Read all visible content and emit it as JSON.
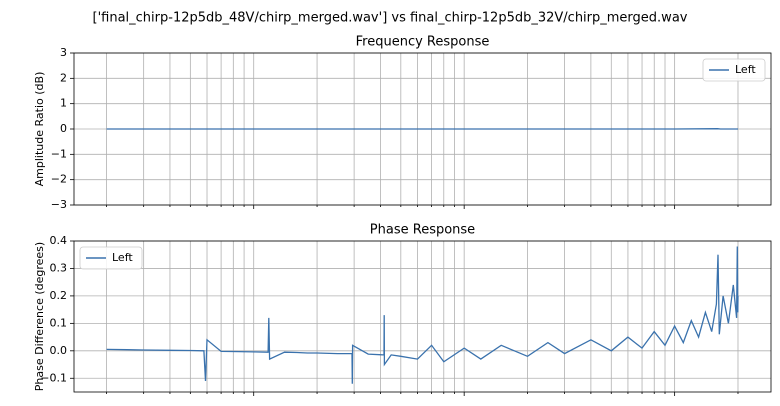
{
  "title": "['final_chirp-12p5db_48V/chirp_merged.wav'] vs final_chirp-12p5db_32V/chirp_merged.wav",
  "chart_data": [
    {
      "type": "line",
      "title": "Frequency Response",
      "y_label": "Amplitude Ratio (dB)",
      "x_scale": "log",
      "xlim": [
        14,
        28700
      ],
      "xticks": [
        100,
        1000,
        10000
      ],
      "minor_xticks": [
        20,
        30,
        40,
        50,
        60,
        70,
        80,
        90,
        200,
        300,
        400,
        500,
        600,
        700,
        800,
        900,
        2000,
        3000,
        4000,
        5000,
        6000,
        7000,
        8000,
        9000,
        20000
      ],
      "ylim": [
        -3,
        3
      ],
      "yticks": [
        {
          "value": -3,
          "label": "−3"
        },
        {
          "value": -2,
          "label": "−2"
        },
        {
          "value": -1,
          "label": "−1"
        },
        0,
        1,
        2,
        3
      ],
      "grid": true,
      "legend": "upper right",
      "series": [
        {
          "name": "Left",
          "color": "#3a72ad",
          "x": [
            20,
            100,
            1000,
            10000,
            16000,
            16500,
            20000
          ],
          "values": [
            0,
            0,
            0,
            0,
            0.01,
            0,
            0
          ]
        }
      ]
    },
    {
      "type": "line",
      "title": "Phase Response",
      "y_label": "Phase Difference (degrees)",
      "x_scale": "log",
      "xlim": [
        14,
        28700
      ],
      "xticks": [
        100,
        1000,
        10000
      ],
      "minor_xticks": [
        20,
        30,
        40,
        50,
        60,
        70,
        80,
        90,
        200,
        300,
        400,
        500,
        600,
        700,
        800,
        900,
        2000,
        3000,
        4000,
        5000,
        6000,
        7000,
        8000,
        9000,
        20000
      ],
      "ylim": [
        -0.15,
        0.4
      ],
      "yticks": [
        {
          "value": -0.1,
          "label": "−0.1"
        },
        {
          "value": 0,
          "label": "0.0"
        },
        0.1,
        0.2,
        0.3,
        0.4
      ],
      "grid": true,
      "legend": "upper left",
      "series": [
        {
          "name": "Left",
          "color": "#3a72ad",
          "x": [
            20,
            25,
            30,
            40,
            50,
            58,
            59,
            60,
            70,
            85,
            100,
            117,
            118,
            119,
            140,
            160,
            180,
            200,
            250,
            293,
            294,
            295,
            350,
            416,
            417,
            418,
            450,
            500,
            600,
            700,
            800,
            1000,
            1200,
            1500,
            2000,
            2500,
            3000,
            4000,
            5000,
            6000,
            7000,
            8000,
            9000,
            10000,
            11000,
            12000,
            13000,
            14000,
            15000,
            15800,
            16070,
            16300,
            17000,
            18000,
            19000,
            19700,
            19860,
            19950,
            20000
          ],
          "values": [
            0.005,
            0.004,
            0.003,
            0.002,
            0.001,
            0.0,
            -0.11,
            0.04,
            -0.002,
            -0.003,
            -0.004,
            -0.005,
            0.12,
            -0.03,
            -0.005,
            -0.006,
            -0.008,
            -0.008,
            -0.01,
            -0.01,
            -0.12,
            0.02,
            -0.012,
            -0.015,
            0.13,
            -0.05,
            -0.015,
            -0.02,
            -0.03,
            0.02,
            -0.04,
            0.01,
            -0.03,
            0.02,
            -0.02,
            0.03,
            -0.01,
            0.04,
            0.0,
            0.05,
            0.01,
            0.07,
            0.02,
            0.09,
            0.03,
            0.11,
            0.05,
            0.14,
            0.07,
            0.17,
            0.35,
            0.06,
            0.2,
            0.1,
            0.24,
            0.12,
            0.38,
            0.14,
            0.2
          ]
        }
      ]
    }
  ]
}
